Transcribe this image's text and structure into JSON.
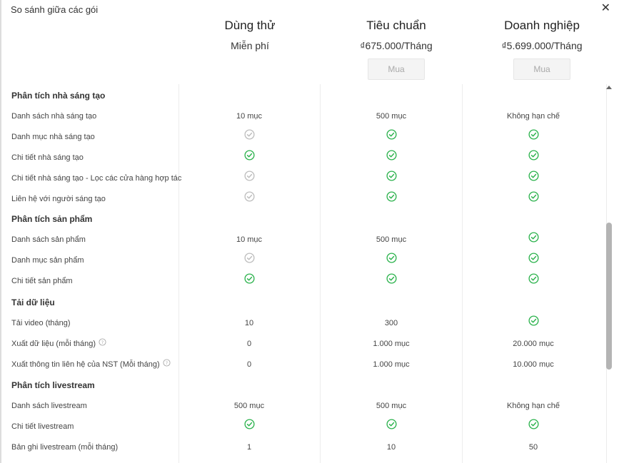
{
  "dialog": {
    "title": "So sánh giữa các gói",
    "close_icon": "close-icon"
  },
  "plans": [
    {
      "name": "Dùng thử",
      "price": "Miễn phí",
      "buy": ""
    },
    {
      "name": "Tiêu chuẩn",
      "price": "₫675.000/Tháng",
      "buy": "Mua"
    },
    {
      "name": "Doanh nghiệp",
      "price": "₫5.699.000/Tháng",
      "buy": "Mua"
    }
  ],
  "colors": {
    "check_active": "#2bb24c",
    "check_disabled": "#bdbdbd"
  },
  "rows": [
    {
      "type": "section",
      "label": "Phân tích nhà sáng tạo"
    },
    {
      "type": "item",
      "label": "Danh sách nhà sáng tạo",
      "values": [
        {
          "t": "text",
          "v": "10 mục"
        },
        {
          "t": "text",
          "v": "500 mục"
        },
        {
          "t": "text",
          "v": "Không hạn chế"
        }
      ]
    },
    {
      "type": "item",
      "label": "Danh mục nhà sáng tạo",
      "values": [
        {
          "t": "off"
        },
        {
          "t": "on"
        },
        {
          "t": "on"
        }
      ]
    },
    {
      "type": "item",
      "label": "Chi tiết nhà sáng tạo",
      "values": [
        {
          "t": "on"
        },
        {
          "t": "on"
        },
        {
          "t": "on"
        }
      ]
    },
    {
      "type": "item",
      "label": "Chi tiết nhà sáng tạo - Lọc các cửa hàng hợp tác",
      "values": [
        {
          "t": "off"
        },
        {
          "t": "on"
        },
        {
          "t": "on"
        }
      ]
    },
    {
      "type": "item",
      "label": "Liên hệ với người sáng tạo",
      "values": [
        {
          "t": "off"
        },
        {
          "t": "on"
        },
        {
          "t": "on"
        }
      ]
    },
    {
      "type": "section",
      "label": "Phân tích sản phẩm"
    },
    {
      "type": "item",
      "label": "Danh sách sản phẩm",
      "values": [
        {
          "t": "text",
          "v": "10 mục"
        },
        {
          "t": "text",
          "v": "500 mục"
        },
        {
          "t": "on"
        }
      ]
    },
    {
      "type": "item",
      "label": "Danh mục sản phẩm",
      "values": [
        {
          "t": "off"
        },
        {
          "t": "on"
        },
        {
          "t": "on"
        }
      ]
    },
    {
      "type": "item",
      "label": "Chi tiết sản phẩm",
      "values": [
        {
          "t": "on"
        },
        {
          "t": "on"
        },
        {
          "t": "on"
        }
      ]
    },
    {
      "type": "section",
      "label": "Tải dữ liệu"
    },
    {
      "type": "item",
      "label": "Tải video (tháng)",
      "values": [
        {
          "t": "text",
          "v": "10"
        },
        {
          "t": "text",
          "v": "300"
        },
        {
          "t": "on"
        }
      ]
    },
    {
      "type": "item",
      "label": "Xuất dữ liệu (mỗi tháng)",
      "info": true,
      "values": [
        {
          "t": "text",
          "v": "0"
        },
        {
          "t": "text",
          "v": "1.000 mục"
        },
        {
          "t": "text",
          "v": "20.000 mục"
        }
      ]
    },
    {
      "type": "item",
      "label": "Xuất thông tin liên hệ của NST (Mỗi tháng)",
      "info": true,
      "values": [
        {
          "t": "text",
          "v": "0"
        },
        {
          "t": "text",
          "v": "1.000 mục"
        },
        {
          "t": "text",
          "v": "10.000 mục"
        }
      ]
    },
    {
      "type": "section",
      "label": "Phân tích livestream"
    },
    {
      "type": "item",
      "label": "Danh sách livestream",
      "values": [
        {
          "t": "text",
          "v": "500 mục"
        },
        {
          "t": "text",
          "v": "500 mục"
        },
        {
          "t": "text",
          "v": "Không hạn chế"
        }
      ]
    },
    {
      "type": "item",
      "label": "Chi tiết livestream",
      "values": [
        {
          "t": "on"
        },
        {
          "t": "on"
        },
        {
          "t": "on"
        }
      ]
    },
    {
      "type": "item",
      "label": "Bản ghi livestream (mỗi tháng)",
      "values": [
        {
          "t": "text",
          "v": "1"
        },
        {
          "t": "text",
          "v": "10"
        },
        {
          "t": "text",
          "v": "50"
        }
      ]
    }
  ]
}
